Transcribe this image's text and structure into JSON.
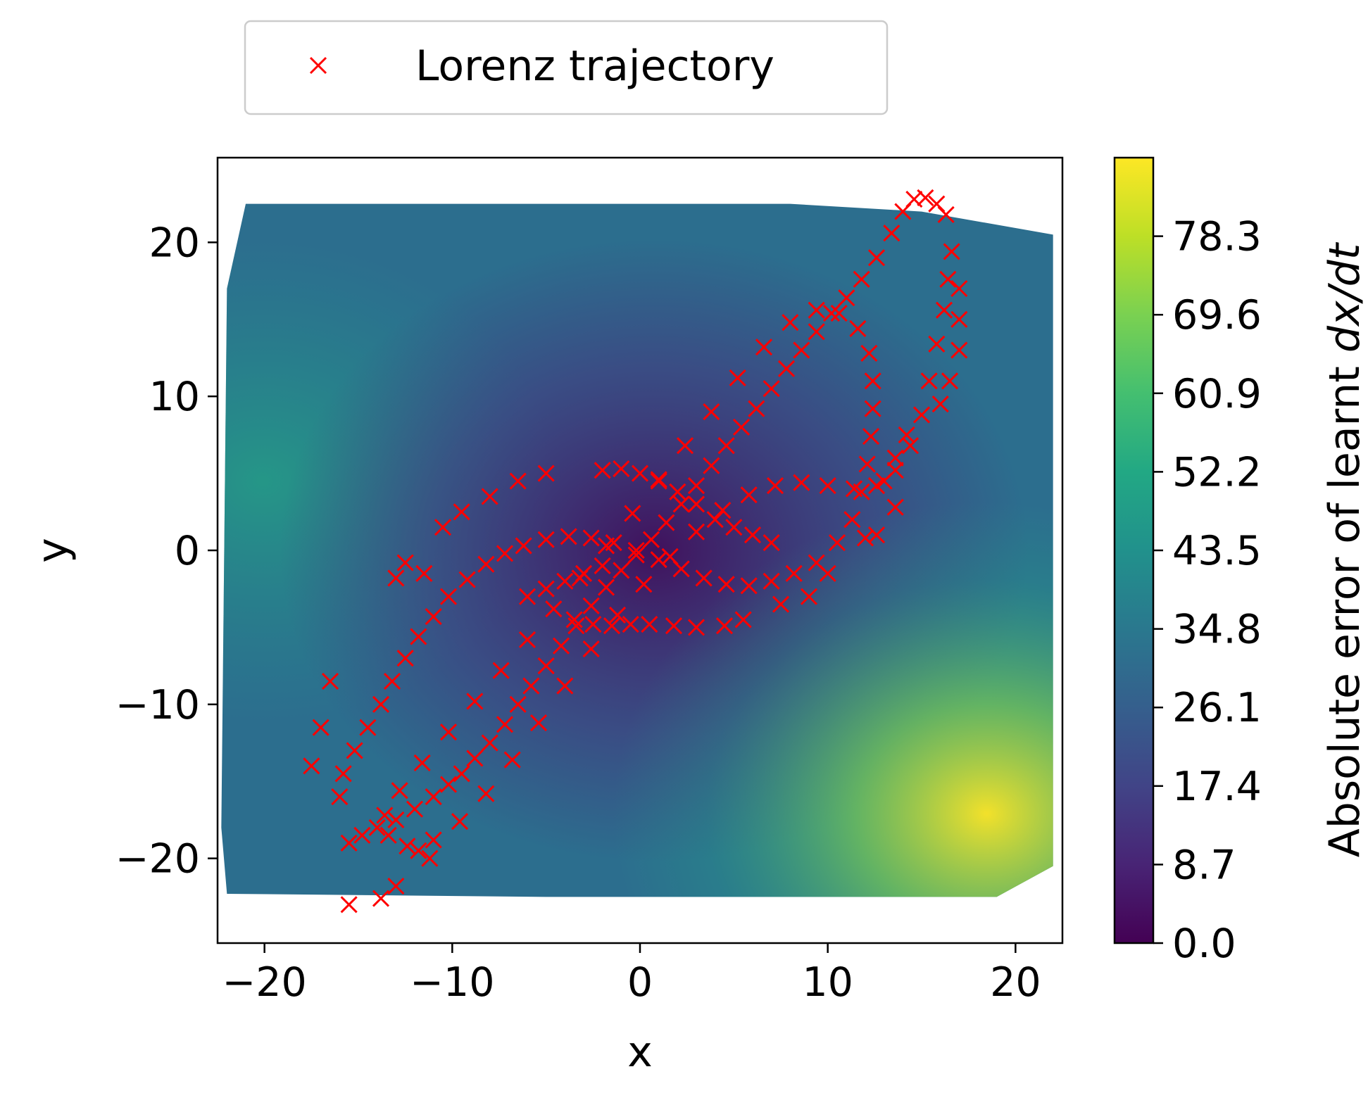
{
  "chart_data": {
    "type": "scatter",
    "title": "",
    "xlabel": "x",
    "ylabel": "y",
    "xlim": [
      -22.5,
      22.5
    ],
    "ylim": [
      -25.5,
      25.5
    ],
    "xticks": [
      -20,
      -10,
      0,
      10,
      20
    ],
    "yticks": [
      -20,
      -10,
      0,
      10,
      20
    ],
    "xtick_labels": [
      "−20",
      "−10",
      "0",
      "10",
      "20"
    ],
    "ytick_labels": [
      "−20",
      "−10",
      "0",
      "10",
      "20"
    ],
    "grid": false,
    "background_field": {
      "type": "heatmap",
      "description_colormap": "viridis",
      "region": {
        "x": [
          -22,
          22
        ],
        "y": [
          -22.5,
          22.5
        ]
      },
      "zlim": [
        0,
        87
      ]
    },
    "colorbar": {
      "label_prefix": "Absolute error of learnt ",
      "label_math": "dx/dt",
      "ticks": [
        0.0,
        8.7,
        17.4,
        26.1,
        34.8,
        43.5,
        52.2,
        60.9,
        69.6,
        78.3
      ],
      "tick_labels": [
        "0.0",
        "8.7",
        "17.4",
        "26.1",
        "34.8",
        "43.5",
        "52.2",
        "60.9",
        "69.6",
        "78.3"
      ],
      "range": [
        0,
        87
      ]
    },
    "legend": {
      "placement": "top-center-outside",
      "entries": [
        "Lorenz trajectory"
      ]
    },
    "series": [
      {
        "name": "Lorenz trajectory",
        "marker": "x",
        "color": "#ff0000",
        "points": [
          [
            -15.5,
            -23
          ],
          [
            -13.8,
            -22.6
          ],
          [
            -13.0,
            -21.8
          ],
          [
            -11.2,
            -20.0
          ],
          [
            -11.8,
            -19.5
          ],
          [
            -15.5,
            -19.0
          ],
          [
            -14.8,
            -18.5
          ],
          [
            -14.0,
            -18.0
          ],
          [
            -13.0,
            -17.5
          ],
          [
            -12.0,
            -16.8
          ],
          [
            -11.0,
            -16.0
          ],
          [
            -10.2,
            -15.2
          ],
          [
            -9.5,
            -14.5
          ],
          [
            -8.8,
            -13.5
          ],
          [
            -8.0,
            -12.5
          ],
          [
            -7.2,
            -11.3
          ],
          [
            -6.5,
            -10.0
          ],
          [
            -5.8,
            -8.8
          ],
          [
            -5.0,
            -7.5
          ],
          [
            -4.2,
            -6.2
          ],
          [
            -3.4,
            -4.9
          ],
          [
            -2.6,
            -3.6
          ],
          [
            -1.8,
            -2.4
          ],
          [
            -1.0,
            -1.3
          ],
          [
            -0.2,
            -0.3
          ],
          [
            0.6,
            0.7
          ],
          [
            1.4,
            1.8
          ],
          [
            2.2,
            3.0
          ],
          [
            3.0,
            4.2
          ],
          [
            3.8,
            5.5
          ],
          [
            4.6,
            6.8
          ],
          [
            5.4,
            8.0
          ],
          [
            6.2,
            9.2
          ],
          [
            7.0,
            10.5
          ],
          [
            7.8,
            11.8
          ],
          [
            8.6,
            13.0
          ],
          [
            9.4,
            14.2
          ],
          [
            10.2,
            15.4
          ],
          [
            11.0,
            16.4
          ],
          [
            11.8,
            17.6
          ],
          [
            12.6,
            19.0
          ],
          [
            13.4,
            20.6
          ],
          [
            14.0,
            22.0
          ],
          [
            14.6,
            22.8
          ],
          [
            15.2,
            22.9
          ],
          [
            15.8,
            22.5
          ],
          [
            16.3,
            21.8
          ],
          [
            -16.0,
            -16.0
          ],
          [
            -15.8,
            -14.5
          ],
          [
            -15.2,
            -13.0
          ],
          [
            -14.5,
            -11.5
          ],
          [
            -13.8,
            -10.0
          ],
          [
            -13.2,
            -8.5
          ],
          [
            -12.5,
            -7.0
          ],
          [
            -11.8,
            -5.6
          ],
          [
            -11.0,
            -4.3
          ],
          [
            -10.2,
            -3.0
          ],
          [
            -9.2,
            -1.9
          ],
          [
            -8.2,
            -0.9
          ],
          [
            -7.2,
            -0.2
          ],
          [
            -6.2,
            0.3
          ],
          [
            -5.0,
            0.7
          ],
          [
            -3.8,
            0.9
          ],
          [
            -2.6,
            0.8
          ],
          [
            -1.4,
            0.5
          ],
          [
            -0.2,
            0.0
          ],
          [
            1.0,
            -0.6
          ],
          [
            2.2,
            -1.2
          ],
          [
            3.4,
            -1.8
          ],
          [
            4.6,
            -2.2
          ],
          [
            5.8,
            -2.3
          ],
          [
            7.0,
            -2.0
          ],
          [
            8.2,
            -1.5
          ],
          [
            9.4,
            -0.8
          ],
          [
            10.5,
            0.5
          ],
          [
            11.3,
            2.0
          ],
          [
            11.8,
            3.8
          ],
          [
            12.1,
            5.6
          ],
          [
            12.3,
            7.4
          ],
          [
            12.4,
            9.2
          ],
          [
            12.4,
            11.0
          ],
          [
            12.2,
            12.8
          ],
          [
            11.6,
            14.4
          ],
          [
            10.6,
            15.4
          ],
          [
            9.4,
            15.6
          ],
          [
            8.0,
            14.8
          ],
          [
            6.6,
            13.2
          ],
          [
            5.2,
            11.2
          ],
          [
            3.8,
            9.0
          ],
          [
            2.4,
            6.8
          ],
          [
            1.0,
            4.6
          ],
          [
            -0.4,
            2.4
          ],
          [
            -1.8,
            0.3
          ],
          [
            -3.2,
            -1.8
          ],
          [
            -4.6,
            -3.8
          ],
          [
            -6.0,
            -5.8
          ],
          [
            -7.4,
            -7.8
          ],
          [
            -8.8,
            -9.8
          ],
          [
            -10.2,
            -11.8
          ],
          [
            -11.6,
            -13.8
          ],
          [
            -12.8,
            -15.6
          ],
          [
            -13.6,
            -17.2
          ],
          [
            -13.4,
            -18.5
          ],
          [
            -12.4,
            -19.2
          ],
          [
            -11.0,
            -18.8
          ],
          [
            -9.6,
            -17.6
          ],
          [
            -8.2,
            -15.8
          ],
          [
            -6.8,
            -13.6
          ],
          [
            -5.4,
            -11.2
          ],
          [
            -4.0,
            -8.8
          ],
          [
            -2.6,
            -6.4
          ],
          [
            -1.2,
            -4.2
          ],
          [
            0.2,
            -2.2
          ],
          [
            1.6,
            -0.4
          ],
          [
            3.0,
            1.2
          ],
          [
            4.4,
            2.6
          ],
          [
            5.8,
            3.6
          ],
          [
            7.2,
            4.2
          ],
          [
            8.6,
            4.4
          ],
          [
            10.0,
            4.2
          ],
          [
            11.4,
            4.0
          ],
          [
            12.6,
            4.2
          ],
          [
            13.6,
            5.2
          ],
          [
            14.4,
            6.8
          ],
          [
            15.0,
            8.8
          ],
          [
            15.4,
            11.0
          ],
          [
            15.8,
            13.4
          ],
          [
            16.2,
            15.6
          ],
          [
            16.4,
            17.6
          ],
          [
            16.6,
            19.4
          ],
          [
            17.0,
            17.0
          ],
          [
            17.0,
            15.0
          ],
          [
            17.0,
            13.0
          ],
          [
            16.5,
            11.0
          ],
          [
            16.0,
            9.5
          ],
          [
            14.2,
            7.5
          ],
          [
            13.6,
            6.0
          ],
          [
            13.0,
            4.5
          ],
          [
            13.6,
            2.8
          ],
          [
            12.6,
            1.0
          ],
          [
            12.0,
            0.8
          ],
          [
            10.0,
            -1.5
          ],
          [
            9.0,
            -3.0
          ],
          [
            7.5,
            -3.5
          ],
          [
            5.5,
            -4.5
          ],
          [
            4.5,
            -4.9
          ],
          [
            3.0,
            -5.0
          ],
          [
            1.8,
            -4.9
          ],
          [
            0.5,
            -4.8
          ],
          [
            -0.5,
            -4.8
          ],
          [
            -1.5,
            -4.9
          ],
          [
            -2.5,
            -4.8
          ],
          [
            -3.5,
            -4.5
          ],
          [
            -5.0,
            5.0
          ],
          [
            -6.5,
            4.5
          ],
          [
            -8.0,
            3.5
          ],
          [
            -9.5,
            2.5
          ],
          [
            -10.5,
            1.5
          ],
          [
            -13.0,
            -1.8
          ],
          [
            -12.5,
            -0.8
          ],
          [
            -11.5,
            -1.5
          ],
          [
            -17.5,
            -14.0
          ],
          [
            -17.0,
            -11.5
          ],
          [
            -16.5,
            -8.5
          ],
          [
            -2.0,
            5.2
          ],
          [
            -1.0,
            5.3
          ],
          [
            0.0,
            5.0
          ],
          [
            1.0,
            4.5
          ],
          [
            2.0,
            3.8
          ],
          [
            3.0,
            3.0
          ],
          [
            4.0,
            2.0
          ],
          [
            5.0,
            1.5
          ],
          [
            6.0,
            1.0
          ],
          [
            7.0,
            0.5
          ],
          [
            -6.0,
            -3.0
          ],
          [
            -5.0,
            -2.5
          ],
          [
            -4.0,
            -2.0
          ],
          [
            -3.0,
            -1.5
          ],
          [
            -2.0,
            -1.0
          ]
        ]
      }
    ]
  }
}
